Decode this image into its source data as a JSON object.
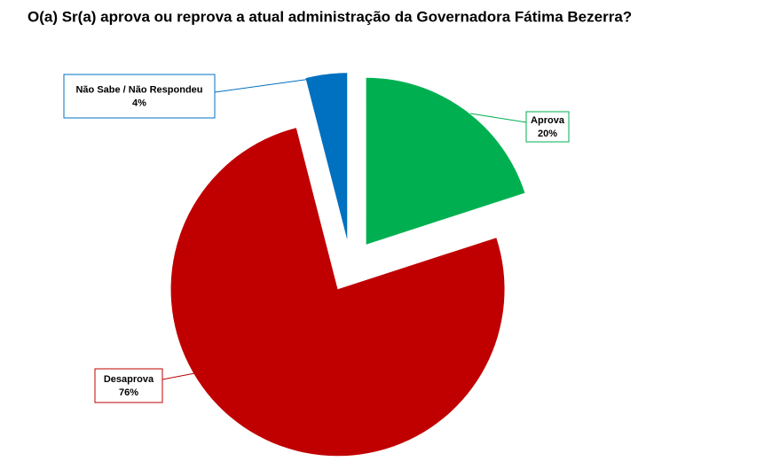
{
  "chart_data": {
    "type": "pie",
    "title": "O(a) Sr(a) aprova ou reprova a atual administração da Governadora Fátima Bezerra?",
    "categories": [
      "Aprova",
      "Desaprova",
      "Não Sabe / Não Respondeu"
    ],
    "values": [
      20,
      76,
      4
    ],
    "value_labels": [
      "20%",
      "76%",
      "4%"
    ],
    "colors": [
      "#00B050",
      "#C00000",
      "#0070C0"
    ],
    "exploded": true
  }
}
